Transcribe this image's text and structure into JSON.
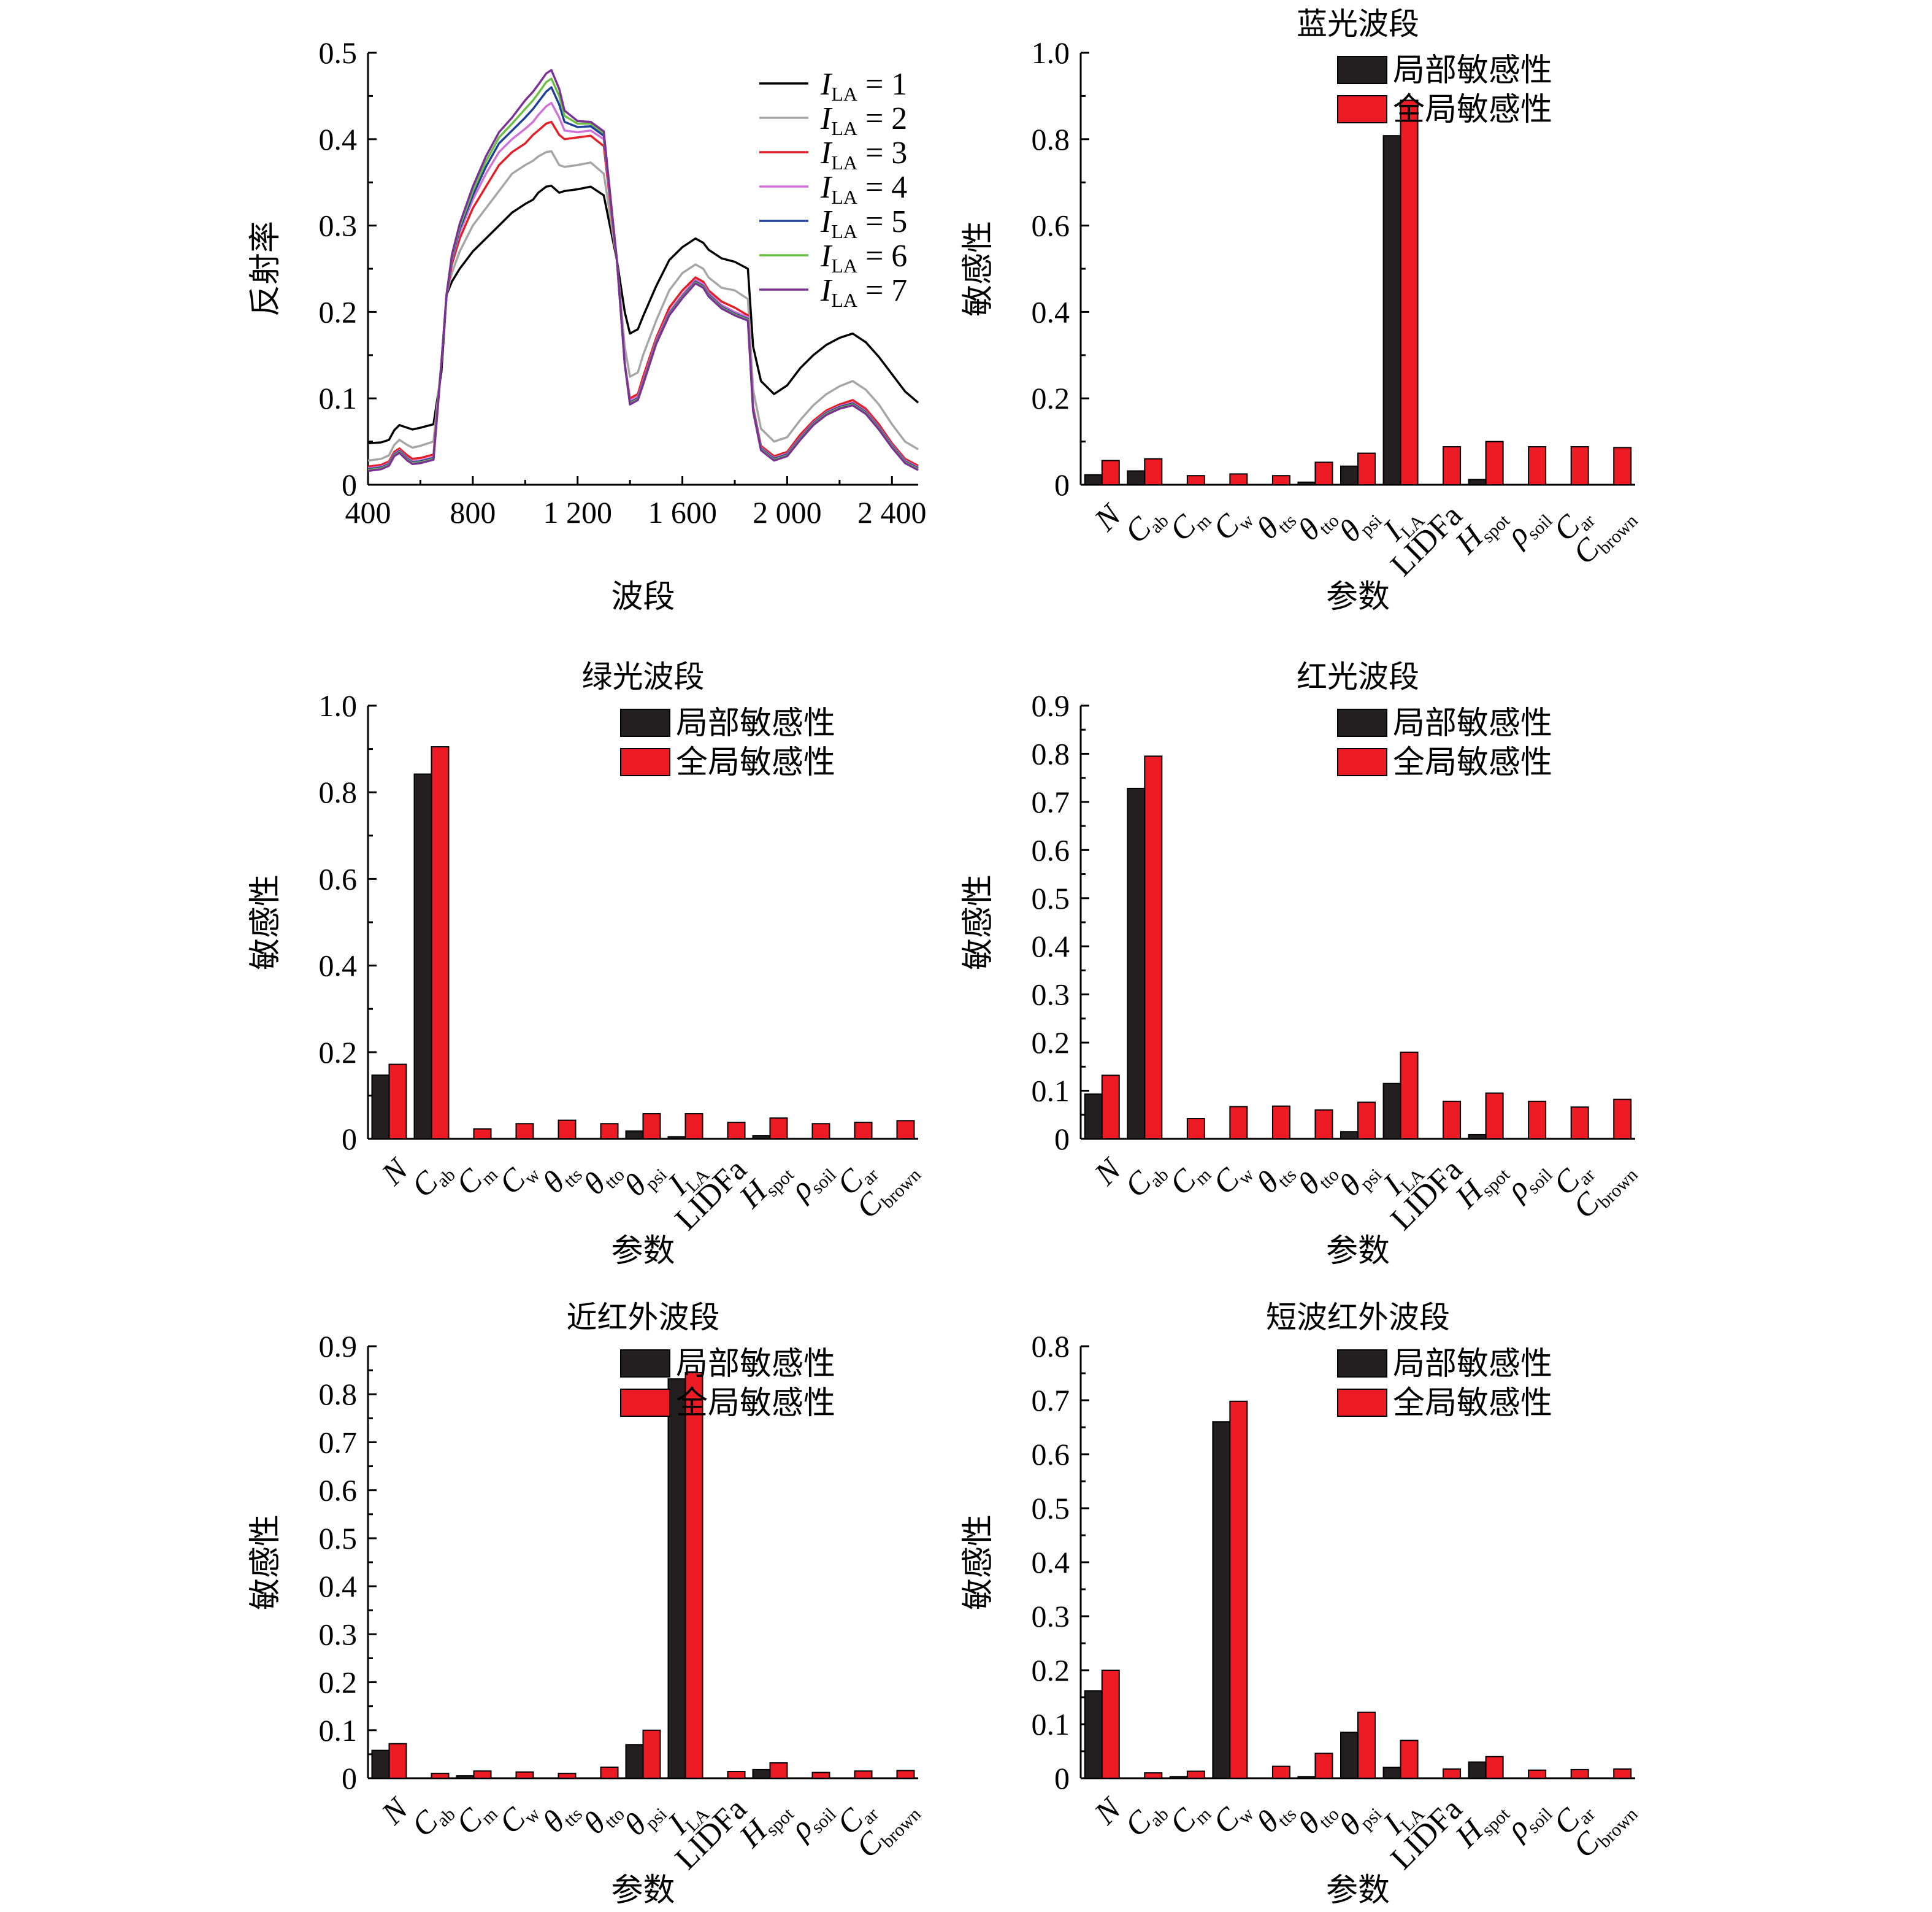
{
  "page": {
    "background": "#ffffff"
  },
  "colors": {
    "local": "#231f20",
    "global": "#ed1c24"
  },
  "chart_data": [
    {
      "type": "line",
      "title": "",
      "xlabel": "波段",
      "ylabel": "反射率",
      "xlim": [
        400,
        2500
      ],
      "ylim": [
        0,
        0.5
      ],
      "xticks": [
        400,
        800,
        1200,
        1600,
        2000,
        2400
      ],
      "xtick_labels": [
        "400",
        "800",
        "1 200",
        "1 600",
        "2 000",
        "2 400"
      ],
      "yticks": [
        0,
        0.1,
        0.2,
        0.3,
        0.4,
        0.5
      ],
      "ytick_labels": [
        "0",
        "0.1",
        "0.2",
        "0.3",
        "0.4",
        "0.5"
      ],
      "legend_position": "top-right",
      "x": [
        400,
        450,
        480,
        500,
        520,
        550,
        570,
        600,
        650,
        680,
        700,
        720,
        750,
        800,
        850,
        900,
        950,
        1000,
        1030,
        1050,
        1080,
        1100,
        1130,
        1150,
        1200,
        1250,
        1300,
        1350,
        1380,
        1400,
        1430,
        1450,
        1500,
        1550,
        1600,
        1650,
        1680,
        1700,
        1750,
        1800,
        1850,
        1870,
        1900,
        1950,
        2000,
        2050,
        2100,
        2150,
        2200,
        2250,
        2300,
        2350,
        2400,
        2450,
        2500
      ],
      "series": [
        {
          "name_main": "I",
          "name_sub": "LA",
          "name_value": "= 1",
          "color": "#000000",
          "values": [
            0.048,
            0.049,
            0.052,
            0.063,
            0.069,
            0.066,
            0.064,
            0.066,
            0.07,
            0.13,
            0.22,
            0.235,
            0.25,
            0.27,
            0.285,
            0.3,
            0.315,
            0.325,
            0.33,
            0.338,
            0.345,
            0.346,
            0.338,
            0.34,
            0.342,
            0.345,
            0.335,
            0.26,
            0.2,
            0.175,
            0.18,
            0.195,
            0.23,
            0.26,
            0.275,
            0.285,
            0.28,
            0.272,
            0.262,
            0.258,
            0.25,
            0.16,
            0.12,
            0.105,
            0.115,
            0.135,
            0.15,
            0.162,
            0.17,
            0.175,
            0.165,
            0.148,
            0.128,
            0.108,
            0.095
          ]
        },
        {
          "name_main": "I",
          "name_sub": "LA",
          "name_value": "= 2",
          "color": "#a6a6a6",
          "values": [
            0.028,
            0.03,
            0.034,
            0.046,
            0.052,
            0.046,
            0.043,
            0.045,
            0.05,
            0.14,
            0.22,
            0.245,
            0.27,
            0.3,
            0.32,
            0.34,
            0.36,
            0.37,
            0.375,
            0.38,
            0.385,
            0.386,
            0.37,
            0.368,
            0.37,
            0.373,
            0.36,
            0.26,
            0.16,
            0.125,
            0.13,
            0.15,
            0.19,
            0.225,
            0.245,
            0.255,
            0.25,
            0.24,
            0.228,
            0.225,
            0.215,
            0.11,
            0.065,
            0.05,
            0.055,
            0.075,
            0.092,
            0.105,
            0.114,
            0.12,
            0.11,
            0.093,
            0.07,
            0.05,
            0.041
          ]
        },
        {
          "name_main": "I",
          "name_sub": "LA",
          "name_value": "= 3",
          "color": "#e41e26",
          "values": [
            0.021,
            0.023,
            0.027,
            0.038,
            0.042,
            0.034,
            0.03,
            0.031,
            0.035,
            0.14,
            0.22,
            0.255,
            0.285,
            0.32,
            0.345,
            0.37,
            0.385,
            0.395,
            0.405,
            0.41,
            0.418,
            0.42,
            0.405,
            0.4,
            0.402,
            0.404,
            0.392,
            0.26,
            0.14,
            0.1,
            0.105,
            0.125,
            0.17,
            0.205,
            0.225,
            0.24,
            0.235,
            0.225,
            0.212,
            0.205,
            0.196,
            0.09,
            0.045,
            0.033,
            0.038,
            0.058,
            0.074,
            0.086,
            0.093,
            0.098,
            0.088,
            0.07,
            0.048,
            0.03,
            0.022
          ]
        },
        {
          "name_main": "I",
          "name_sub": "LA",
          "name_value": "= 4",
          "color": "#d070d8",
          "values": [
            0.019,
            0.021,
            0.025,
            0.036,
            0.04,
            0.031,
            0.027,
            0.028,
            0.032,
            0.14,
            0.22,
            0.26,
            0.292,
            0.33,
            0.36,
            0.385,
            0.4,
            0.412,
            0.42,
            0.428,
            0.438,
            0.442,
            0.425,
            0.41,
            0.408,
            0.41,
            0.4,
            0.26,
            0.14,
            0.097,
            0.102,
            0.12,
            0.167,
            0.2,
            0.22,
            0.237,
            0.232,
            0.222,
            0.208,
            0.2,
            0.194,
            0.088,
            0.043,
            0.031,
            0.036,
            0.055,
            0.072,
            0.084,
            0.091,
            0.095,
            0.085,
            0.067,
            0.046,
            0.028,
            0.02
          ]
        },
        {
          "name_main": "I",
          "name_sub": "LA",
          "name_value": "= 5",
          "color": "#1f3f9a",
          "values": [
            0.018,
            0.02,
            0.024,
            0.035,
            0.039,
            0.03,
            0.026,
            0.027,
            0.031,
            0.14,
            0.22,
            0.262,
            0.296,
            0.335,
            0.368,
            0.395,
            0.41,
            0.425,
            0.435,
            0.443,
            0.455,
            0.46,
            0.44,
            0.42,
            0.414,
            0.415,
            0.404,
            0.26,
            0.14,
            0.095,
            0.1,
            0.118,
            0.165,
            0.198,
            0.218,
            0.235,
            0.23,
            0.22,
            0.206,
            0.198,
            0.192,
            0.087,
            0.042,
            0.03,
            0.035,
            0.054,
            0.071,
            0.083,
            0.09,
            0.094,
            0.084,
            0.066,
            0.045,
            0.027,
            0.019
          ]
        },
        {
          "name_main": "I",
          "name_sub": "LA",
          "name_value": "= 6",
          "color": "#6cbf45",
          "values": [
            0.017,
            0.019,
            0.023,
            0.034,
            0.038,
            0.029,
            0.025,
            0.026,
            0.03,
            0.14,
            0.22,
            0.264,
            0.299,
            0.34,
            0.374,
            0.402,
            0.418,
            0.435,
            0.445,
            0.453,
            0.466,
            0.47,
            0.45,
            0.427,
            0.418,
            0.418,
            0.407,
            0.26,
            0.14,
            0.094,
            0.099,
            0.117,
            0.164,
            0.197,
            0.217,
            0.234,
            0.229,
            0.219,
            0.205,
            0.197,
            0.191,
            0.086,
            0.041,
            0.029,
            0.034,
            0.053,
            0.07,
            0.082,
            0.089,
            0.093,
            0.083,
            0.065,
            0.044,
            0.026,
            0.018
          ]
        },
        {
          "name_main": "I",
          "name_sub": "LA",
          "name_value": "= 7",
          "color": "#7b3294",
          "values": [
            0.016,
            0.018,
            0.022,
            0.033,
            0.037,
            0.028,
            0.024,
            0.025,
            0.029,
            0.14,
            0.22,
            0.266,
            0.302,
            0.345,
            0.38,
            0.408,
            0.425,
            0.445,
            0.455,
            0.463,
            0.476,
            0.48,
            0.458,
            0.433,
            0.421,
            0.42,
            0.409,
            0.26,
            0.14,
            0.093,
            0.098,
            0.116,
            0.163,
            0.196,
            0.216,
            0.233,
            0.228,
            0.218,
            0.204,
            0.196,
            0.19,
            0.085,
            0.04,
            0.028,
            0.033,
            0.052,
            0.069,
            0.081,
            0.088,
            0.092,
            0.082,
            0.064,
            0.043,
            0.025,
            0.017
          ]
        }
      ]
    },
    {
      "type": "bar",
      "title": "蓝光波段",
      "xlabel": "参数",
      "ylabel": "敏感性",
      "ylim": [
        0,
        1.0
      ],
      "yticks": [
        0,
        0.2,
        0.4,
        0.6,
        0.8,
        1.0
      ],
      "ytick_labels": [
        "0",
        "0.2",
        "0.4",
        "0.6",
        "0.8",
        "1.0"
      ],
      "legend_position": "top-right",
      "legend": [
        "局部敏感性",
        "全局敏感性"
      ],
      "categories": [
        "N",
        "Cab",
        "Cm",
        "Cw",
        "θtts",
        "θtto",
        "θpsi",
        "ILA",
        "LIDFa",
        "Hspot",
        "ρsoil",
        "Car",
        "Cbrown"
      ],
      "series": [
        {
          "values": [
            0.023,
            0.032,
            0.0,
            0.0,
            0.0,
            0.006,
            0.043,
            0.808,
            0.0,
            0.012,
            0.0,
            0.0,
            0.0
          ]
        },
        {
          "values": [
            0.056,
            0.06,
            0.021,
            0.025,
            0.021,
            0.052,
            0.073,
            0.89,
            0.088,
            0.1,
            0.088,
            0.088,
            0.086
          ]
        }
      ]
    },
    {
      "type": "bar",
      "title": "绿光波段",
      "xlabel": "参数",
      "ylabel": "敏感性",
      "ylim": [
        0,
        1.0
      ],
      "yticks": [
        0,
        0.2,
        0.4,
        0.6,
        0.8,
        1.0
      ],
      "ytick_labels": [
        "0",
        "0.2",
        "0.4",
        "0.6",
        "0.8",
        "1.0"
      ],
      "legend_position": "top-right",
      "legend": [
        "局部敏感性",
        "全局敏感性"
      ],
      "categories": [
        "N",
        "Cab",
        "Cm",
        "Cw",
        "θtts",
        "θtto",
        "θpsi",
        "ILA",
        "LIDFa",
        "Hspot",
        "ρsoil",
        "Car",
        "Cbrown"
      ],
      "series": [
        {
          "values": [
            0.147,
            0.842,
            0.0,
            0.0,
            0.0,
            0.0,
            0.018,
            0.005,
            0.0,
            0.007,
            0.0,
            0.0,
            0.0
          ]
        },
        {
          "values": [
            0.172,
            0.905,
            0.023,
            0.035,
            0.043,
            0.035,
            0.058,
            0.058,
            0.038,
            0.048,
            0.035,
            0.038,
            0.042
          ]
        }
      ]
    },
    {
      "type": "bar",
      "title": "红光波段",
      "xlabel": "参数",
      "ylabel": "敏感性",
      "ylim": [
        0,
        0.9
      ],
      "yticks": [
        0,
        0.1,
        0.2,
        0.3,
        0.4,
        0.5,
        0.6,
        0.7,
        0.8,
        0.9
      ],
      "ytick_labels": [
        "0",
        "0.1",
        "0.2",
        "0.3",
        "0.4",
        "0.5",
        "0.6",
        "0.7",
        "0.8",
        "0.9"
      ],
      "legend_position": "top-right",
      "legend": [
        "局部敏感性",
        "全局敏感性"
      ],
      "categories": [
        "N",
        "Cab",
        "Cm",
        "Cw",
        "θtts",
        "θtto",
        "θpsi",
        "ILA",
        "LIDFa",
        "Hspot",
        "ρsoil",
        "Car",
        "Cbrown"
      ],
      "series": [
        {
          "values": [
            0.093,
            0.728,
            0.0,
            0.0,
            0.0,
            0.0,
            0.015,
            0.115,
            0.0,
            0.009,
            0.0,
            0.0,
            0.0
          ]
        },
        {
          "values": [
            0.132,
            0.795,
            0.042,
            0.067,
            0.068,
            0.06,
            0.076,
            0.18,
            0.078,
            0.095,
            0.078,
            0.066,
            0.082
          ]
        }
      ]
    },
    {
      "type": "bar",
      "title": "近红外波段",
      "xlabel": "参数",
      "ylabel": "敏感性",
      "ylim": [
        0,
        0.9
      ],
      "yticks": [
        0,
        0.1,
        0.2,
        0.3,
        0.4,
        0.5,
        0.6,
        0.7,
        0.8,
        0.9
      ],
      "ytick_labels": [
        "0",
        "0.1",
        "0.2",
        "0.3",
        "0.4",
        "0.5",
        "0.6",
        "0.7",
        "0.8",
        "0.9"
      ],
      "legend_position": "top-right",
      "legend": [
        "局部敏感性",
        "全局敏感性"
      ],
      "categories": [
        "N",
        "Cab",
        "Cm",
        "Cw",
        "θtts",
        "θtto",
        "θpsi",
        "ILA",
        "LIDFa",
        "Hspot",
        "ρsoil",
        "Car",
        "Cbrown"
      ],
      "series": [
        {
          "values": [
            0.058,
            0.0,
            0.005,
            0.0,
            0.0,
            0.0,
            0.07,
            0.832,
            0.0,
            0.018,
            0.0,
            0.0,
            0.0
          ]
        },
        {
          "values": [
            0.072,
            0.01,
            0.015,
            0.013,
            0.01,
            0.023,
            0.1,
            0.845,
            0.014,
            0.032,
            0.012,
            0.015,
            0.016
          ]
        }
      ]
    },
    {
      "type": "bar",
      "title": "短波红外波段",
      "xlabel": "参数",
      "ylabel": "敏感性",
      "ylim": [
        0,
        0.8
      ],
      "yticks": [
        0,
        0.1,
        0.2,
        0.3,
        0.4,
        0.5,
        0.6,
        0.7,
        0.8
      ],
      "ytick_labels": [
        "0",
        "0.1",
        "0.2",
        "0.3",
        "0.4",
        "0.5",
        "0.6",
        "0.7",
        "0.8"
      ],
      "legend_position": "top-right",
      "legend": [
        "局部敏感性",
        "全局敏感性"
      ],
      "categories": [
        "N",
        "Cab",
        "Cm",
        "Cw",
        "θtts",
        "θtto",
        "θpsi",
        "ILA",
        "LIDFa",
        "Hspot",
        "ρsoil",
        "Car",
        "Cbrown"
      ],
      "series": [
        {
          "values": [
            0.162,
            0.0,
            0.003,
            0.66,
            0.0,
            0.003,
            0.085,
            0.02,
            0.0,
            0.03,
            0.0,
            0.0,
            0.0
          ]
        },
        {
          "values": [
            0.2,
            0.01,
            0.013,
            0.698,
            0.022,
            0.046,
            0.122,
            0.07,
            0.017,
            0.04,
            0.015,
            0.016,
            0.017
          ]
        }
      ]
    }
  ]
}
